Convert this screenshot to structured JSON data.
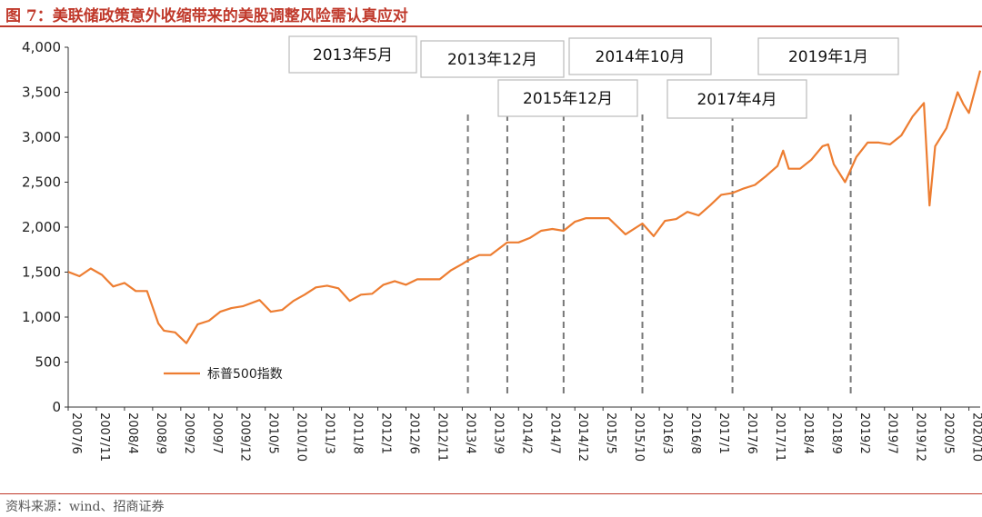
{
  "header": {
    "title": "图 7：美联储政策意外收缩带来的美股调整风险需认真应对"
  },
  "footer": {
    "source": "资料来源：wind、招商证券"
  },
  "chart_data": {
    "type": "line",
    "title": "图 7：美联储政策意外收缩带来的美股调整风险需认真应对",
    "xlabel": "",
    "ylabel": "",
    "ylim": [
      0,
      4000
    ],
    "yticks": [
      0,
      500,
      1000,
      1500,
      2000,
      2500,
      3000,
      3500,
      4000
    ],
    "ytick_labels": [
      "0",
      "500",
      "1,000",
      "1,500",
      "2,000",
      "2,500",
      "3,000",
      "3,500",
      "4,000"
    ],
    "xlim": [
      "2007-06",
      "2020-12"
    ],
    "xtick_labels": [
      "2007/6",
      "2007/11",
      "2008/4",
      "2008/9",
      "2009/2",
      "2009/7",
      "2009/12",
      "2010/5",
      "2010/10",
      "2011/3",
      "2011/8",
      "2012/1",
      "2012/6",
      "2012/11",
      "2013/4",
      "2013/9",
      "2014/2",
      "2014/7",
      "2014/12",
      "2015/5",
      "2015/10",
      "2016/3",
      "2016/8",
      "2017/1",
      "2017/6",
      "2017/11",
      "2018/4",
      "2018/9",
      "2019/2",
      "2019/7",
      "2019/12",
      "2020/5",
      "2020/10"
    ],
    "grid": false,
    "legend_position": "bottom-left",
    "line_color": "#ed7d31",
    "series": [
      {
        "name": "标普500指数",
        "x": [
          "2007-06",
          "2007-08",
          "2007-10",
          "2007-12",
          "2008-02",
          "2008-04",
          "2008-06",
          "2008-08",
          "2008-10",
          "2008-11",
          "2009-01",
          "2009-03",
          "2009-05",
          "2009-07",
          "2009-09",
          "2009-11",
          "2010-01",
          "2010-04",
          "2010-06",
          "2010-08",
          "2010-10",
          "2010-12",
          "2011-02",
          "2011-04",
          "2011-06",
          "2011-08",
          "2011-10",
          "2011-12",
          "2012-02",
          "2012-04",
          "2012-06",
          "2012-08",
          "2012-10",
          "2012-12",
          "2013-02",
          "2013-04",
          "2013-05",
          "2013-07",
          "2013-09",
          "2013-12",
          "2014-02",
          "2014-04",
          "2014-06",
          "2014-08",
          "2014-10",
          "2014-12",
          "2015-02",
          "2015-04",
          "2015-06",
          "2015-08",
          "2015-09",
          "2015-12",
          "2016-02",
          "2016-04",
          "2016-06",
          "2016-08",
          "2016-10",
          "2016-12",
          "2017-02",
          "2017-04",
          "2017-06",
          "2017-08",
          "2017-10",
          "2017-12",
          "2018-01",
          "2018-02",
          "2018-04",
          "2018-06",
          "2018-08",
          "2018-09",
          "2018-10",
          "2018-12",
          "2019-02",
          "2019-04",
          "2019-06",
          "2019-08",
          "2019-10",
          "2019-12",
          "2020-02",
          "2020-03",
          "2020-04",
          "2020-06",
          "2020-08",
          "2020-09",
          "2020-10",
          "2020-12"
        ],
        "values": [
          1503,
          1455,
          1540,
          1470,
          1340,
          1380,
          1290,
          1290,
          930,
          850,
          830,
          710,
          920,
          960,
          1060,
          1100,
          1120,
          1190,
          1060,
          1080,
          1180,
          1250,
          1330,
          1350,
          1320,
          1180,
          1250,
          1260,
          1360,
          1400,
          1360,
          1420,
          1420,
          1420,
          1520,
          1590,
          1630,
          1690,
          1690,
          1830,
          1830,
          1880,
          1960,
          1980,
          1960,
          2060,
          2100,
          2100,
          2100,
          1980,
          1920,
          2040,
          1900,
          2070,
          2090,
          2170,
          2130,
          2240,
          2360,
          2380,
          2430,
          2470,
          2570,
          2680,
          2850,
          2650,
          2650,
          2750,
          2900,
          2920,
          2700,
          2500,
          2780,
          2940,
          2940,
          2920,
          3020,
          3230,
          3380,
          2240,
          2900,
          3100,
          3500,
          3370,
          3270,
          3740
        ]
      }
    ],
    "annotations": [
      {
        "label": "2013年5月",
        "x": "2013-05"
      },
      {
        "label": "2013年12月",
        "x": "2013-12"
      },
      {
        "label": "2014年10月",
        "x": "2014-10"
      },
      {
        "label": "2015年12月",
        "x": "2015-12"
      },
      {
        "label": "2017年4月",
        "x": "2017-04"
      },
      {
        "label": "2019年1月",
        "x": "2019-01"
      }
    ]
  }
}
